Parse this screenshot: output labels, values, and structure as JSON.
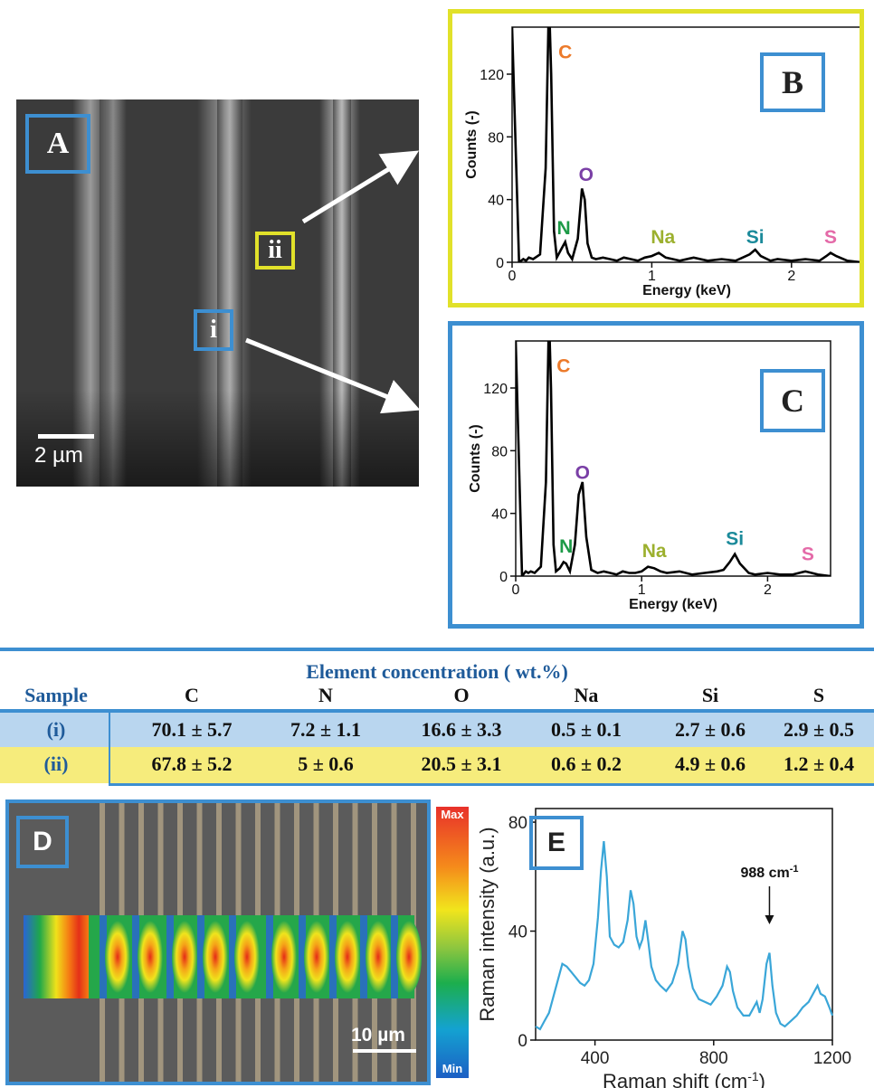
{
  "panel_labels": {
    "a": "A",
    "b": "B",
    "c": "C",
    "d": "D",
    "e": "E"
  },
  "sem": {
    "scale_bar": "2 µm",
    "region_i": "i",
    "region_ii": "ii"
  },
  "colors": {
    "blue_frame": "#3d8fd1",
    "yellow_frame": "#e1e12a",
    "row_i_bg": "#b9d6ef",
    "row_ii_bg": "#f6ec7c",
    "table_header_text": "#1f5b9a",
    "raman_line": "#3aa6d8",
    "C": "#ec7a2a",
    "N": "#1d9a47",
    "O": "#7a3fa6",
    "Na": "#9cb02e",
    "Si": "#1b8a9a",
    "S": "#e46aa8"
  },
  "chart_data": [
    {
      "id": "B",
      "type": "line",
      "xlabel": "Energy (keV)",
      "ylabel": "Counts (-)",
      "xlim": [
        0,
        2.5
      ],
      "ylim": [
        0,
        150
      ],
      "xticks": [
        0,
        1,
        2
      ],
      "yticks": [
        0,
        40,
        80,
        120
      ],
      "grid": false,
      "x": [
        0,
        0.05,
        0.08,
        0.1,
        0.12,
        0.15,
        0.2,
        0.24,
        0.26,
        0.27,
        0.28,
        0.3,
        0.32,
        0.35,
        0.38,
        0.4,
        0.43,
        0.47,
        0.5,
        0.52,
        0.54,
        0.57,
        0.6,
        0.65,
        0.7,
        0.75,
        0.8,
        0.85,
        0.9,
        0.95,
        1.0,
        1.05,
        1.1,
        1.15,
        1.2,
        1.3,
        1.4,
        1.5,
        1.6,
        1.65,
        1.7,
        1.74,
        1.78,
        1.85,
        1.9,
        2.0,
        2.1,
        2.2,
        2.25,
        2.28,
        2.32,
        2.4,
        2.5
      ],
      "y": [
        150,
        0,
        2,
        1,
        3,
        2,
        5,
        60,
        150,
        150,
        120,
        20,
        3,
        8,
        13,
        6,
        2,
        15,
        47,
        40,
        12,
        3,
        2,
        3,
        2,
        1,
        3,
        2,
        1,
        3,
        4,
        6,
        3,
        2,
        1,
        3,
        1,
        2,
        1,
        3,
        5,
        8,
        4,
        1,
        2,
        1,
        2,
        1,
        4,
        6,
        4,
        1,
        0
      ],
      "annotations": [
        "C",
        "N",
        "O",
        "Na",
        "Si",
        "S"
      ]
    },
    {
      "id": "C",
      "type": "line",
      "xlabel": "Energy (keV)",
      "ylabel": "Counts (-)",
      "xlim": [
        0,
        2.5
      ],
      "ylim": [
        0,
        150
      ],
      "xticks": [
        0,
        1,
        2
      ],
      "yticks": [
        0,
        40,
        80,
        120
      ],
      "grid": false,
      "x": [
        0,
        0.05,
        0.08,
        0.1,
        0.12,
        0.15,
        0.2,
        0.24,
        0.26,
        0.27,
        0.28,
        0.3,
        0.32,
        0.35,
        0.38,
        0.4,
        0.43,
        0.47,
        0.5,
        0.53,
        0.56,
        0.6,
        0.65,
        0.7,
        0.75,
        0.8,
        0.85,
        0.9,
        0.95,
        1.0,
        1.05,
        1.1,
        1.15,
        1.2,
        1.3,
        1.4,
        1.5,
        1.6,
        1.65,
        1.7,
        1.74,
        1.78,
        1.85,
        1.9,
        2.0,
        2.1,
        2.2,
        2.25,
        2.3,
        2.35,
        2.4,
        2.5
      ],
      "y": [
        150,
        0,
        3,
        2,
        3,
        2,
        6,
        60,
        150,
        150,
        120,
        20,
        3,
        5,
        9,
        8,
        3,
        20,
        52,
        60,
        25,
        4,
        2,
        3,
        2,
        1,
        3,
        2,
        2,
        3,
        6,
        5,
        3,
        2,
        3,
        1,
        2,
        3,
        4,
        9,
        14,
        8,
        2,
        1,
        2,
        1,
        1,
        2,
        3,
        2,
        1,
        0
      ],
      "annotations": [
        "C",
        "N",
        "O",
        "Na",
        "Si",
        "S"
      ]
    },
    {
      "id": "table",
      "type": "table",
      "title": "Element concentration ( wt.%)",
      "columns": [
        "Sample",
        "C",
        "N",
        "O",
        "Na",
        "Si",
        "S"
      ],
      "rows": [
        [
          "(i)",
          "70.1 ± 5.7",
          "7.2 ± 1.1",
          "16.6 ± 3.3",
          "0.5 ± 0.1",
          "2.7 ± 0.6",
          "2.9 ± 0.5"
        ],
        [
          "(ii)",
          "67.8 ± 5.2",
          "5 ± 0.6",
          "20.5 ± 3.1",
          "0.6 ± 0.2",
          "4.9 ± 0.6",
          "1.2 ± 0.4"
        ]
      ]
    },
    {
      "id": "D",
      "type": "heatmap",
      "scale_bar": "10 µm",
      "colorbar_max": "Max",
      "colorbar_min": "Min"
    },
    {
      "id": "E",
      "type": "line",
      "xlabel": "Raman shift (cm",
      "xlabel_sup": "-1",
      "xlabel_close": ")",
      "ylabel": "Raman intensity (a.u.)",
      "xlim": [
        200,
        1200
      ],
      "ylim": [
        0,
        85
      ],
      "xticks": [
        400,
        800,
        1200
      ],
      "yticks": [
        0,
        40,
        80
      ],
      "annotation": "988 cm",
      "annotation_sup": "-1",
      "annotation_x": 988,
      "x": [
        200,
        215,
        230,
        245,
        260,
        275,
        290,
        305,
        320,
        335,
        350,
        365,
        380,
        395,
        410,
        420,
        430,
        440,
        450,
        465,
        480,
        495,
        510,
        520,
        530,
        540,
        550,
        560,
        570,
        580,
        590,
        605,
        620,
        640,
        660,
        680,
        695,
        705,
        715,
        730,
        750,
        770,
        790,
        810,
        830,
        845,
        855,
        865,
        880,
        900,
        920,
        935,
        945,
        955,
        965,
        978,
        988,
        998,
        1010,
        1025,
        1040,
        1060,
        1080,
        1100,
        1120,
        1140,
        1150,
        1160,
        1175,
        1190,
        1200
      ],
      "y": [
        5,
        4,
        7,
        10,
        16,
        22,
        28,
        27,
        25,
        23,
        21,
        20,
        22,
        28,
        45,
        62,
        73,
        60,
        38,
        35,
        34,
        36,
        44,
        55,
        50,
        38,
        34,
        37,
        44,
        36,
        27,
        22,
        20,
        18,
        21,
        28,
        40,
        37,
        27,
        19,
        15,
        14,
        13,
        16,
        20,
        27,
        25,
        18,
        12,
        9,
        9,
        12,
        14,
        10,
        15,
        28,
        32,
        20,
        10,
        6,
        5,
        7,
        9,
        12,
        14,
        18,
        20,
        17,
        16,
        12,
        9
      ]
    }
  ]
}
